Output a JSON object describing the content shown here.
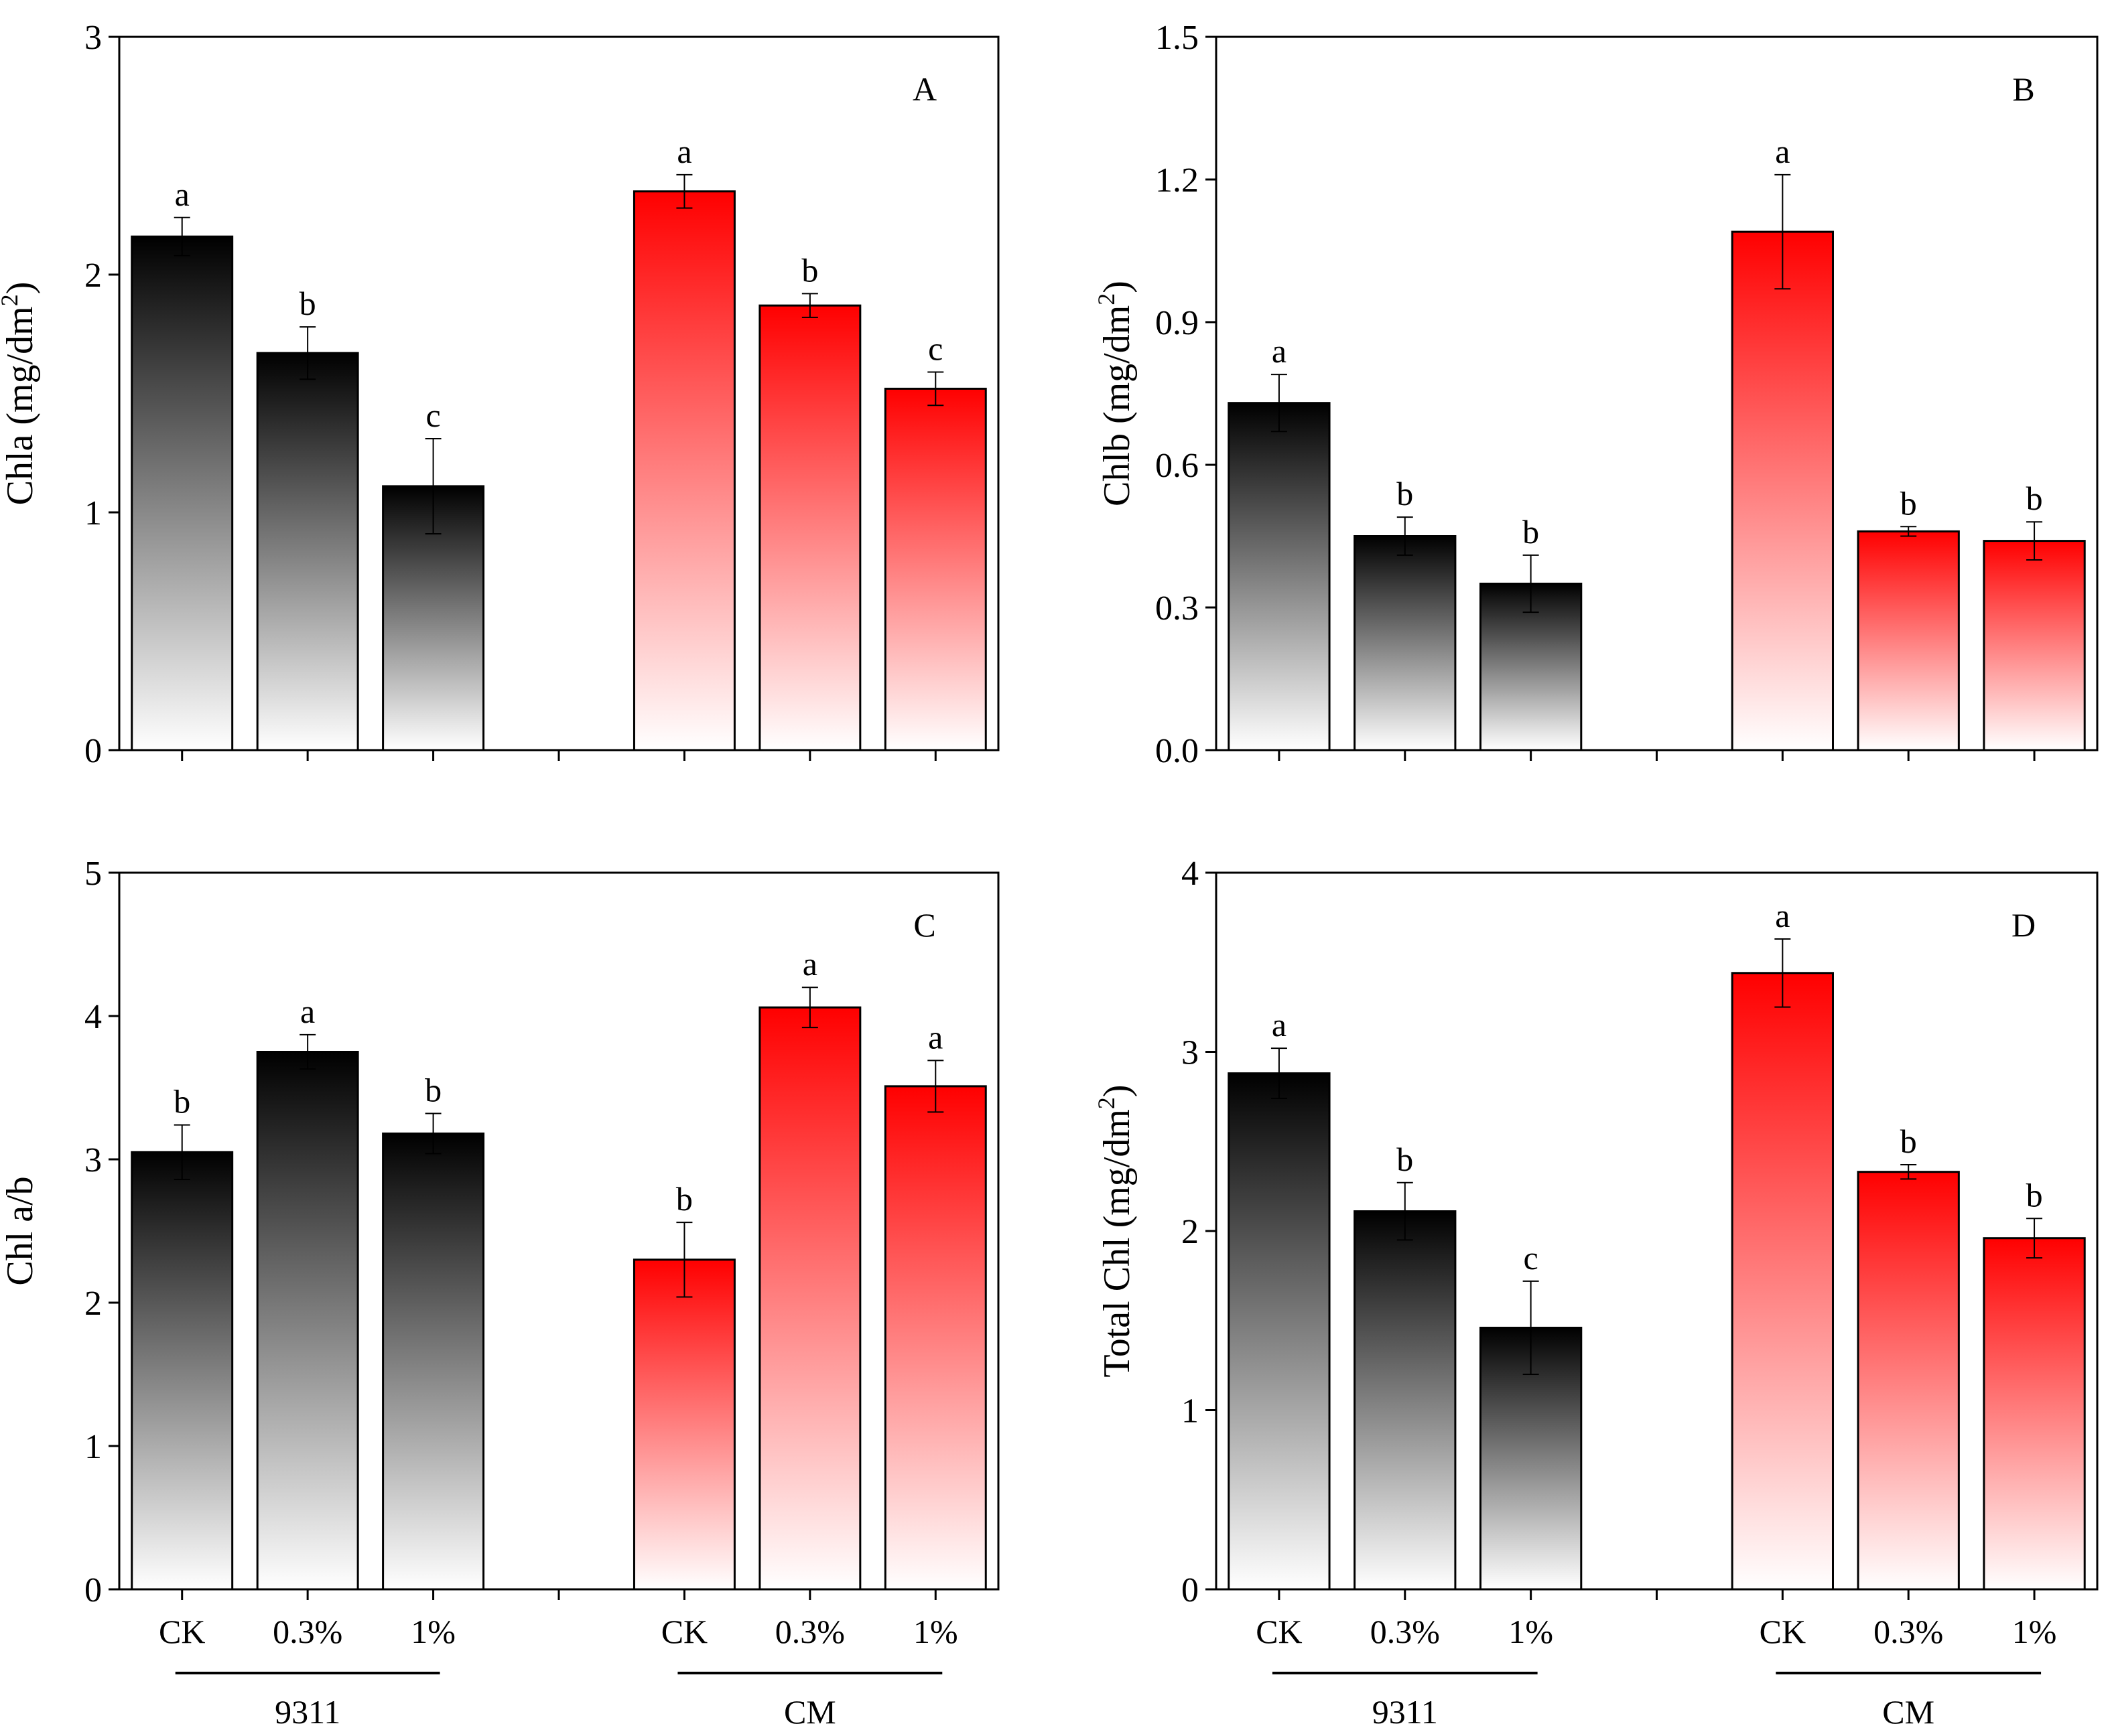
{
  "colors": {
    "group1_top": "#000000",
    "group1_bottom": "#ffffff",
    "group2_top": "#ff0000",
    "group2_bottom": "#ffffff",
    "axis": "#000000"
  },
  "chart_data": [
    {
      "type": "bar",
      "panel_label": "A",
      "ylabel_main": "Chla (mg/dm",
      "ylabel_sup": "2",
      "ylabel_close": ")",
      "ylim": [
        0,
        3
      ],
      "yticks": [
        "0",
        "1",
        "2",
        "3"
      ],
      "ytick_values": [
        0,
        1,
        2,
        3
      ],
      "show_xlabels": false,
      "groups": [
        "9311",
        "CM"
      ],
      "categories": [
        "CK",
        "0.3%",
        "1%"
      ],
      "series": [
        {
          "name": "9311",
          "values": [
            2.16,
            1.67,
            1.11
          ],
          "errors": [
            0.08,
            0.11,
            0.2
          ],
          "letters": [
            "a",
            "b",
            "c"
          ]
        },
        {
          "name": "CM",
          "values": [
            2.35,
            1.87,
            1.52
          ],
          "errors": [
            0.07,
            0.05,
            0.07
          ],
          "letters": [
            "a",
            "b",
            "c"
          ]
        }
      ]
    },
    {
      "type": "bar",
      "panel_label": "B",
      "ylabel_main": "Chlb (mg/dm",
      "ylabel_sup": "2",
      "ylabel_close": ")",
      "ylim": [
        0,
        1.5
      ],
      "yticks": [
        "0.0",
        "0.3",
        "0.6",
        "0.9",
        "1.2",
        "1.5"
      ],
      "ytick_values": [
        0,
        0.3,
        0.6,
        0.9,
        1.2,
        1.5
      ],
      "show_xlabels": false,
      "groups": [
        "9311",
        "CM"
      ],
      "categories": [
        "CK",
        "0.3%",
        "1%"
      ],
      "series": [
        {
          "name": "9311",
          "values": [
            0.73,
            0.45,
            0.35
          ],
          "errors": [
            0.06,
            0.04,
            0.06
          ],
          "letters": [
            "a",
            "b",
            "b"
          ]
        },
        {
          "name": "CM",
          "values": [
            1.09,
            0.46,
            0.44
          ],
          "errors": [
            0.12,
            0.01,
            0.04
          ],
          "letters": [
            "a",
            "b",
            "b"
          ]
        }
      ]
    },
    {
      "type": "bar",
      "panel_label": "C",
      "ylabel_main": "Chl a/b",
      "ylabel_sup": "",
      "ylabel_close": "",
      "ylim": [
        0,
        5
      ],
      "yticks": [
        "0",
        "1",
        "2",
        "3",
        "4",
        "5"
      ],
      "ytick_values": [
        0,
        1,
        2,
        3,
        4,
        5
      ],
      "show_xlabels": true,
      "groups": [
        "9311",
        "CM"
      ],
      "categories": [
        "CK",
        "0.3%",
        "1%"
      ],
      "series": [
        {
          "name": "9311",
          "values": [
            3.05,
            3.75,
            3.18
          ],
          "errors": [
            0.19,
            0.12,
            0.14
          ],
          "letters": [
            "b",
            "a",
            "b"
          ]
        },
        {
          "name": "CM",
          "values": [
            2.3,
            4.06,
            3.51
          ],
          "errors": [
            0.26,
            0.14,
            0.18
          ],
          "letters": [
            "b",
            "a",
            "a"
          ]
        }
      ]
    },
    {
      "type": "bar",
      "panel_label": "D",
      "ylabel_main": "Total Chl (mg/dm",
      "ylabel_sup": "2",
      "ylabel_close": ")",
      "ylim": [
        0,
        4
      ],
      "yticks": [
        "0",
        "1",
        "2",
        "3",
        "4"
      ],
      "ytick_values": [
        0,
        1,
        2,
        3,
        4
      ],
      "show_xlabels": true,
      "groups": [
        "9311",
        "CM"
      ],
      "categories": [
        "CK",
        "0.3%",
        "1%"
      ],
      "series": [
        {
          "name": "9311",
          "values": [
            2.88,
            2.11,
            1.46
          ],
          "errors": [
            0.14,
            0.16,
            0.26
          ],
          "letters": [
            "a",
            "b",
            "c"
          ]
        },
        {
          "name": "CM",
          "values": [
            3.44,
            2.33,
            1.96
          ],
          "errors": [
            0.19,
            0.04,
            0.11
          ],
          "letters": [
            "a",
            "b",
            "b"
          ]
        }
      ]
    }
  ]
}
